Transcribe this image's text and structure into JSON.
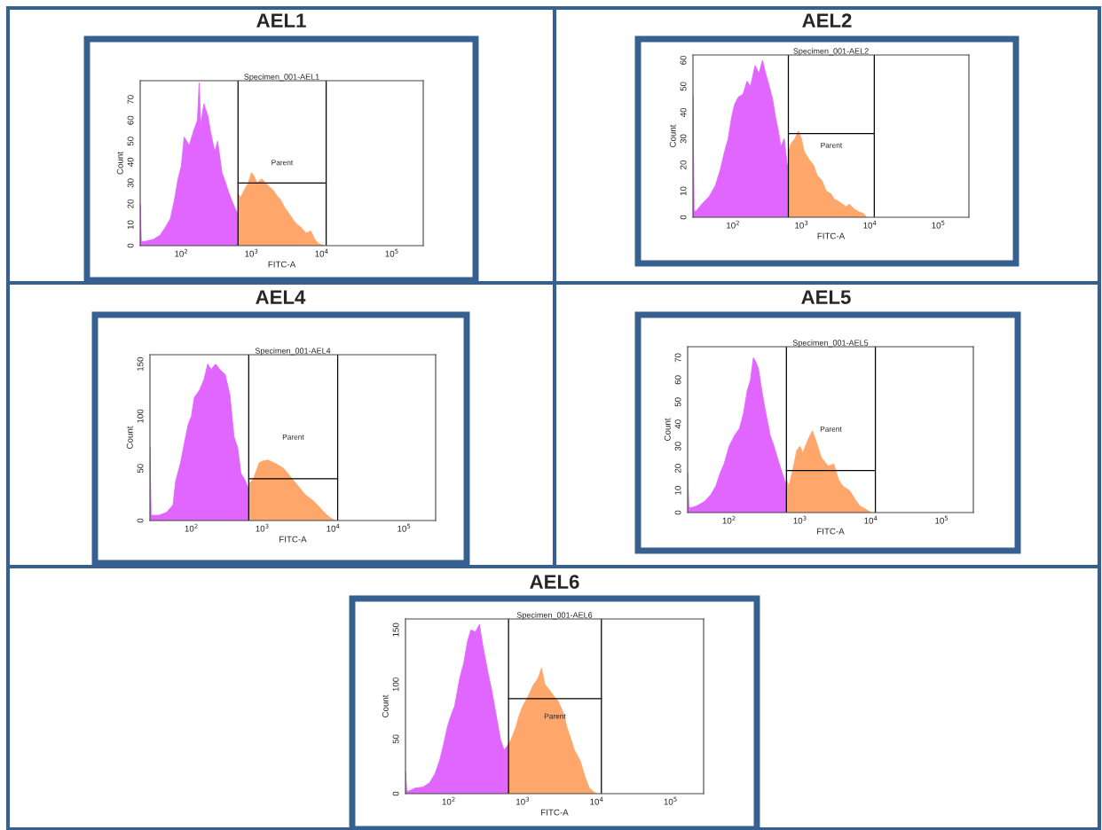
{
  "chart_data": [
    {
      "type": "area",
      "title": "AEL1",
      "subtitle": "Specimen_001-AEL1",
      "xlabel": "FITC-A",
      "ylabel": "Count",
      "log": "x",
      "xlim": [
        26,
        280000
      ],
      "xticks": [
        {
          "value": 100,
          "label": "10$^{2}$"
        },
        {
          "value": 1000,
          "label": "10$^{3}$"
        },
        {
          "value": 10000,
          "label": "10$^{4}$"
        },
        {
          "value": 100000,
          "label": "10$^{5}$"
        }
      ],
      "ylim": [
        0,
        79
      ],
      "yticks": [
        0,
        10,
        20,
        30,
        40,
        50,
        60,
        70
      ],
      "series": [
        {
          "color": "#e066ff",
          "x": [
            26,
            27,
            30,
            40,
            50,
            60,
            70,
            80,
            90,
            100,
            110,
            120,
            130,
            150,
            170,
            180,
            190,
            210,
            240,
            260,
            300,
            330,
            380,
            430,
            480,
            550,
            600,
            644
          ],
          "values": [
            20,
            2,
            2,
            3,
            5,
            9,
            13,
            22,
            32,
            38,
            52,
            50,
            48,
            55,
            60,
            78,
            58,
            68,
            62,
            55,
            45,
            50,
            35,
            30,
            25,
            20,
            17,
            15
          ]
        },
        {
          "color": "#ffa66b",
          "x": [
            644,
            700,
            800,
            900,
            1000,
            1100,
            1200,
            1400,
            1600,
            1800,
            2000,
            2300,
            2600,
            3000,
            3500,
            4000,
            4500,
            5000,
            6000,
            7000,
            8000,
            9000,
            10000,
            11000
          ],
          "values": [
            25,
            23,
            27,
            30,
            35,
            33,
            30,
            32,
            30,
            28,
            27,
            24,
            22,
            18,
            15,
            12,
            10,
            9,
            6,
            7,
            3,
            1,
            0.5,
            0
          ]
        },
        {
          "type": "line",
          "color": "#000000",
          "x": [
            644,
            11600
          ],
          "values": [
            30,
            30
          ]
        }
      ],
      "ref_lines": [
        {
          "axis": "x",
          "value": 644,
          "color": "#000000"
        },
        {
          "axis": "x",
          "value": 11600,
          "color": "#000000"
        }
      ],
      "annotations": [
        "Parent"
      ]
    },
    {
      "type": "area",
      "title": "AEL2",
      "subtitle": "Specimen_001-AEL2",
      "xlabel": "FITC-A",
      "ylabel": "Count",
      "log": "x",
      "xlim": [
        26,
        280000
      ],
      "xticks": [
        {
          "value": 100,
          "label": "10$^{2}$"
        },
        {
          "value": 1000,
          "label": "10$^{3}$"
        },
        {
          "value": 10000,
          "label": "10$^{4}$"
        },
        {
          "value": 100000,
          "label": "10$^{5}$"
        }
      ],
      "ylim": [
        0,
        62
      ],
      "yticks": [
        0,
        10,
        20,
        30,
        40,
        50,
        60
      ],
      "series": [
        {
          "color": "#e066ff",
          "x": [
            26,
            27,
            28,
            35,
            45,
            55,
            65,
            75,
            85,
            95,
            105,
            120,
            140,
            160,
            180,
            210,
            240,
            270,
            300,
            340,
            380,
            420,
            460,
            500,
            560,
            620,
            644
          ],
          "values": [
            47,
            3,
            2,
            5,
            8,
            12,
            18,
            25,
            30,
            38,
            43,
            46,
            47,
            52,
            50,
            58,
            55,
            60,
            55,
            50,
            45,
            38,
            33,
            27,
            30,
            20,
            20
          ]
        },
        {
          "color": "#ffa66b",
          "x": [
            644,
            700,
            800,
            900,
            1000,
            1100,
            1300,
            1500,
            1700,
            2000,
            2300,
            2700,
            3000,
            3500,
            4000,
            4500,
            5000,
            6000,
            7000,
            8000,
            9000
          ],
          "values": [
            25,
            28,
            30,
            33,
            30,
            25,
            22,
            20,
            16,
            14,
            10,
            9,
            7,
            6,
            5,
            4,
            5,
            3,
            2,
            1.5,
            0
          ]
        },
        {
          "type": "line",
          "color": "#000000",
          "x": [
            644,
            11600
          ],
          "values": [
            32,
            32
          ]
        }
      ],
      "ref_lines": [
        {
          "axis": "x",
          "value": 644,
          "color": "#000000"
        },
        {
          "axis": "x",
          "value": 11600,
          "color": "#000000"
        }
      ],
      "annotations": [
        "Parent"
      ]
    },
    {
      "type": "area",
      "title": "AEL4",
      "subtitle": "Specimen_001-AEL4",
      "xlabel": "FITC-A",
      "ylabel": "Count",
      "log": "x",
      "xlim": [
        26,
        280000
      ],
      "xticks": [
        {
          "value": 100,
          "label": "10$^{2}$"
        },
        {
          "value": 1000,
          "label": "10$^{3}$"
        },
        {
          "value": 10000,
          "label": "10$^{4}$"
        },
        {
          "value": 100000,
          "label": "10$^{5}$"
        }
      ],
      "ylim": [
        0,
        159
      ],
      "yticks": [
        0,
        50,
        100,
        150
      ],
      "series": [
        {
          "color": "#e066ff",
          "x": [
            26,
            27,
            28,
            35,
            45,
            55,
            60,
            70,
            80,
            90,
            100,
            110,
            130,
            150,
            170,
            190,
            220,
            250,
            300,
            350,
            400,
            450,
            500,
            560,
            644
          ],
          "values": [
            70,
            5,
            5,
            5,
            8,
            15,
            38,
            55,
            75,
            92,
            100,
            118,
            125,
            135,
            150,
            145,
            150,
            145,
            140,
            120,
            80,
            70,
            45,
            40,
            30
          ]
        },
        {
          "color": "#ffa66b",
          "x": [
            644,
            750,
            900,
            1000,
            1200,
            1500,
            1800,
            2000,
            2300,
            2800,
            3500,
            4000,
            5000,
            6000,
            7000,
            8000,
            9000,
            10000,
            11000
          ],
          "values": [
            35,
            40,
            55,
            57,
            58,
            55,
            52,
            50,
            45,
            38,
            30,
            25,
            20,
            15,
            10,
            6,
            3,
            1,
            0
          ]
        },
        {
          "type": "line",
          "color": "#000000",
          "x": [
            644,
            11600
          ],
          "values": [
            40,
            40
          ]
        }
      ],
      "ref_lines": [
        {
          "axis": "x",
          "value": 644,
          "color": "#000000"
        },
        {
          "axis": "x",
          "value": 11600,
          "color": "#000000"
        }
      ],
      "annotations": [
        "Parent"
      ]
    },
    {
      "type": "area",
      "title": "AEL5",
      "subtitle": "Specimen_001-AEL5",
      "xlabel": "FITC-A",
      "ylabel": "Count",
      "log": "x",
      "xlim": [
        26,
        280000
      ],
      "xticks": [
        {
          "value": 100,
          "label": "10$^{2}$"
        },
        {
          "value": 1000,
          "label": "10$^{3}$"
        },
        {
          "value": 10000,
          "label": "10$^{4}$"
        },
        {
          "value": 100000,
          "label": "10$^{5}$"
        }
      ],
      "ylim": [
        0,
        75
      ],
      "yticks": [
        0,
        10,
        20,
        30,
        40,
        50,
        60,
        70
      ],
      "series": [
        {
          "color": "#e066ff",
          "x": [
            26,
            27,
            28,
            35,
            45,
            55,
            65,
            75,
            85,
            100,
            120,
            140,
            160,
            180,
            200,
            220,
            240,
            260,
            290,
            330,
            380,
            430,
            500,
            560,
            644
          ],
          "values": [
            18,
            3,
            2,
            3,
            5,
            8,
            12,
            18,
            22,
            30,
            35,
            38,
            45,
            55,
            60,
            70,
            68,
            65,
            55,
            45,
            35,
            30,
            23,
            18,
            12
          ]
        },
        {
          "color": "#ffa66b",
          "x": [
            644,
            700,
            800,
            900,
            1000,
            1100,
            1300,
            1500,
            1700,
            2000,
            2500,
            3000,
            3500,
            4000,
            5000,
            6000,
            7000,
            8000,
            9000,
            10000
          ],
          "values": [
            15,
            12,
            20,
            28,
            30,
            27,
            33,
            37,
            32,
            25,
            21,
            22,
            15,
            12,
            10,
            6,
            3,
            2,
            1,
            0
          ]
        },
        {
          "type": "line",
          "color": "#000000",
          "x": [
            644,
            11600
          ],
          "values": [
            19,
            19
          ]
        }
      ],
      "ref_lines": [
        {
          "axis": "x",
          "value": 644,
          "color": "#000000"
        },
        {
          "axis": "x",
          "value": 11600,
          "color": "#000000"
        }
      ],
      "annotations": [
        "Parent"
      ]
    },
    {
      "type": "area",
      "title": "AEL6",
      "subtitle": "Specimen_001-AEL6",
      "xlabel": "FITC-A",
      "ylabel": "Count",
      "log": "x",
      "xlim": [
        26,
        280000
      ],
      "xticks": [
        {
          "value": 100,
          "label": "10$^{2}$"
        },
        {
          "value": 1000,
          "label": "10$^{3}$"
        },
        {
          "value": 10000,
          "label": "10$^{4}$"
        },
        {
          "value": 100000,
          "label": "10$^{5}$"
        }
      ],
      "ylim": [
        0,
        160
      ],
      "yticks": [
        0,
        50,
        100,
        150
      ],
      "series": [
        {
          "color": "#e066ff",
          "x": [
            26,
            27,
            28,
            35,
            45,
            55,
            65,
            75,
            85,
            95,
            105,
            120,
            140,
            160,
            180,
            200,
            230,
            260,
            290,
            330,
            380,
            430,
            500,
            560,
            644
          ],
          "values": [
            20,
            3,
            2,
            5,
            6,
            10,
            18,
            30,
            45,
            60,
            70,
            80,
            105,
            120,
            140,
            150,
            148,
            155,
            135,
            115,
            95,
            75,
            50,
            40,
            45
          ]
        },
        {
          "color": "#ffa66b",
          "x": [
            644,
            700,
            800,
            900,
            1000,
            1200,
            1400,
            1600,
            1800,
            2000,
            2300,
            2600,
            3000,
            3500,
            4000,
            4500,
            5000,
            6000,
            7000,
            8000,
            9000,
            10000
          ],
          "values": [
            45,
            50,
            60,
            72,
            80,
            90,
            100,
            105,
            115,
            100,
            95,
            90,
            85,
            75,
            60,
            50,
            40,
            30,
            15,
            5,
            2,
            0
          ]
        },
        {
          "type": "line",
          "color": "#000000",
          "x": [
            644,
            11600
          ],
          "values": [
            87,
            87
          ]
        }
      ],
      "ref_lines": [
        {
          "axis": "x",
          "value": 644,
          "color": "#000000"
        },
        {
          "axis": "x",
          "value": 11600,
          "color": "#000000"
        }
      ],
      "annotations": [
        "Parent"
      ]
    }
  ]
}
